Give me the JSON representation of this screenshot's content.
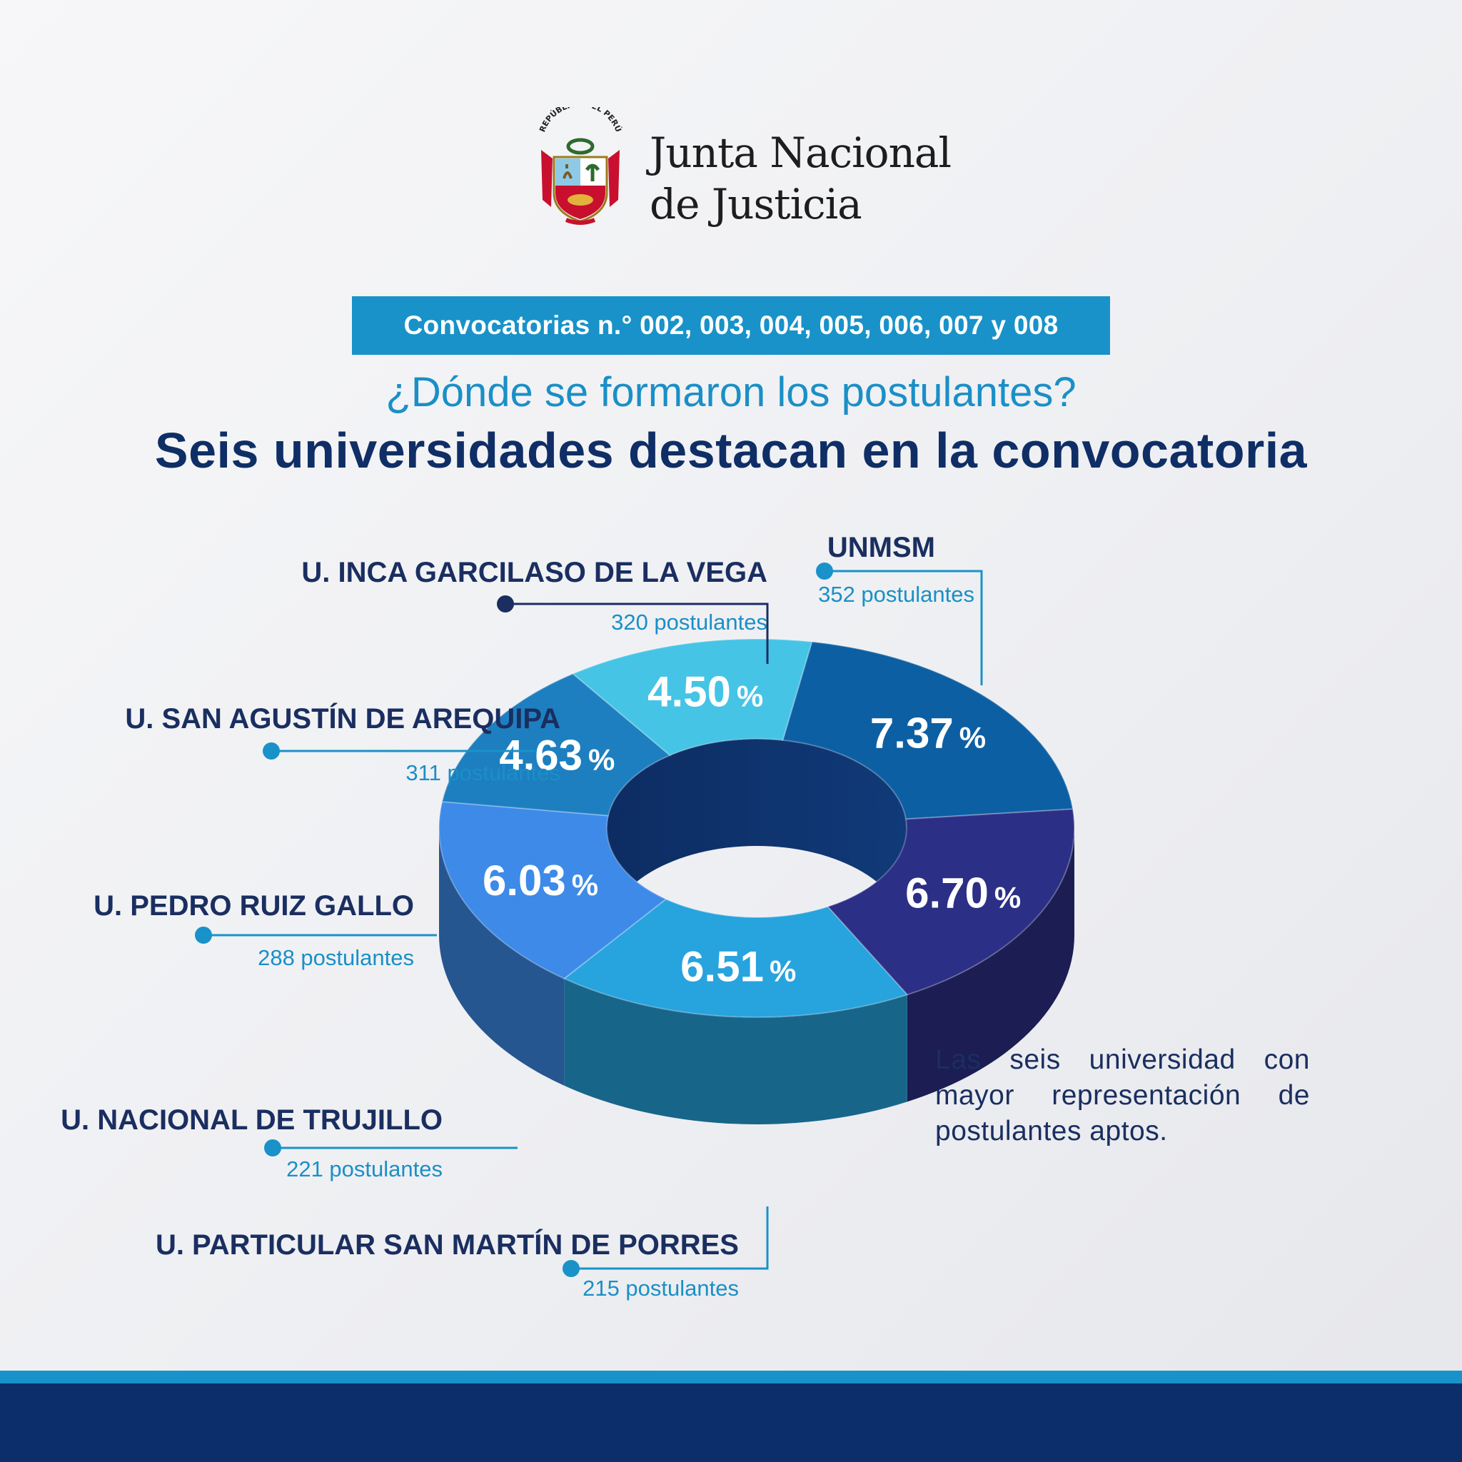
{
  "header": {
    "org_name_line1": "Junta Nacional",
    "org_name_line2": "de Justicia",
    "emblem_text": "REPÚBLICA DEL PERÚ"
  },
  "banner": {
    "text": "Convocatorias n.° 002, 003, 004, 005, 006, 007 y 008"
  },
  "question": "¿Dónde se formaron los postulantes?",
  "headline": "Seis universidades destacan en la convocatoria",
  "note": "Las seis universidad con mayor representación de postulantes aptos.",
  "colors": {
    "primary_blue": "#1992c9",
    "navy": "#0f2e66",
    "footer_dark": "#0c2f6b"
  },
  "chart_data": {
    "type": "pie",
    "style": "3d-donut",
    "unit": "%",
    "series": [
      {
        "label": "UNMSM",
        "value": 7.37,
        "value_text": "7.37",
        "count_text": "352 postulantes",
        "color": "#0d5fa3"
      },
      {
        "label": "U. INCA GARCILASO DE LA VEGA",
        "value": 6.7,
        "value_text": "6.70",
        "count_text": "320 postulantes",
        "color": "#2b2f86"
      },
      {
        "label": "U. SAN AGUSTÍN DE AREQUIPA",
        "value": 6.51,
        "value_text": "6.51",
        "count_text": "311 postulantes",
        "color": "#27a3de"
      },
      {
        "label": "U. PEDRO RUIZ GALLO",
        "value": 6.03,
        "value_text": "6.03",
        "count_text": "288 postulantes",
        "color": "#3d8ae8"
      },
      {
        "label": "U. NACIONAL DE TRUJILLO",
        "value": 4.63,
        "value_text": "4.63",
        "count_text": "221 postulantes",
        "color": "#1d7fc0"
      },
      {
        "label": "U. PARTICULAR SAN MARTÍN DE PORRES",
        "value": 4.5,
        "value_text": "4.50",
        "count_text": "215 postulantes",
        "color": "#45c4e6"
      }
    ]
  }
}
